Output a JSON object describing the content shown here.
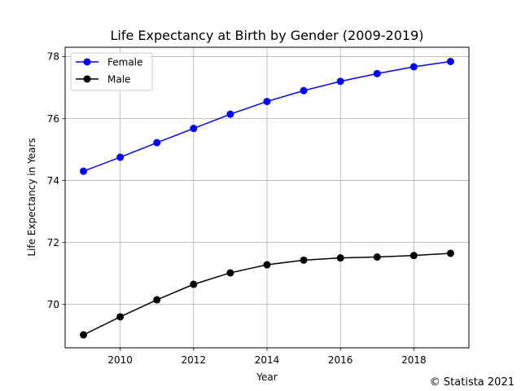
{
  "chart_data": {
    "type": "line",
    "title": "Life Expectancy at Birth by Gender (2009-2019)",
    "xlabel": "Year",
    "ylabel": "Life Expectancy in Years",
    "x": [
      2009,
      2010,
      2011,
      2012,
      2013,
      2014,
      2015,
      2016,
      2017,
      2018,
      2019
    ],
    "xlim": [
      2008.5,
      2019.5
    ],
    "ylim": [
      68.6,
      78.3
    ],
    "xticks": [
      2010,
      2012,
      2014,
      2016,
      2018
    ],
    "yticks": [
      70,
      72,
      74,
      76,
      78
    ],
    "grid": true,
    "legend_position": "upper-left",
    "series": [
      {
        "name": "Female",
        "color": "#0000ff",
        "values": [
          74.3,
          74.75,
          75.22,
          75.68,
          76.14,
          76.55,
          76.9,
          77.2,
          77.45,
          77.67,
          77.84
        ]
      },
      {
        "name": "Male",
        "color": "#000000",
        "values": [
          69.02,
          69.6,
          70.15,
          70.65,
          71.02,
          71.28,
          71.43,
          71.5,
          71.53,
          71.58,
          71.65
        ]
      }
    ]
  },
  "credit": "© Statista 2021"
}
